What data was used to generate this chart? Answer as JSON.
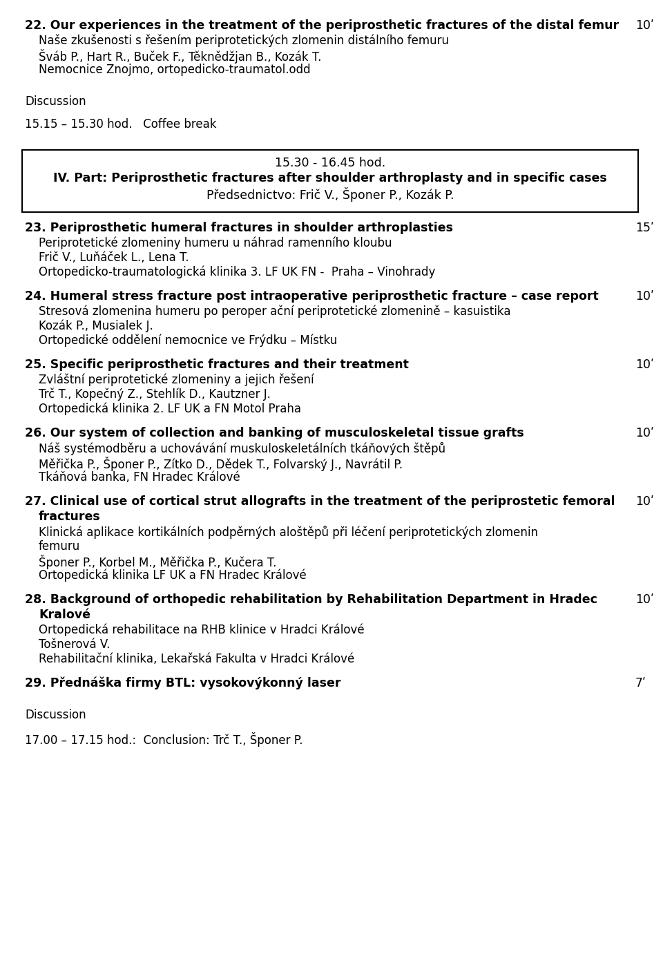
{
  "bg_color": "#ffffff",
  "text_color": "#000000",
  "sections": [
    {
      "type": "entry",
      "number": "22.",
      "title_bold": "Our experiences in the treatment of the periprosthetic fractures of the distal femur",
      "duration": "10ʹ",
      "title_lines": 1,
      "lines": [
        "Naše zkušenosti s řešením periprotetických zlomenin distálního femuru",
        "Šváb P., Hart R., Buček F., Těknědžjan B., Kozák T.",
        "Nemocnice Znojmo, ortopedicko-traumatol.odd"
      ]
    },
    {
      "type": "gap",
      "size": 0.5
    },
    {
      "type": "standalone",
      "text": "Discussion",
      "bold": false
    },
    {
      "type": "gap",
      "size": 0.6
    },
    {
      "type": "standalone",
      "text": "15.15 – 15.30 hod.   Coffee break",
      "bold": false
    },
    {
      "type": "gap",
      "size": 1.2
    },
    {
      "type": "box",
      "lines": [
        {
          "text": "15.30 - 16.45 hod.",
          "bold": false
        },
        {
          "text": "IV. Part: Periprosthetic fractures after shoulder arthroplasty and in specific cases",
          "bold": true
        },
        {
          "text": "Předsednictvo: Frič V., Šponer P., Kozák P.",
          "bold": false
        }
      ]
    },
    {
      "type": "gap",
      "size": 0.3
    },
    {
      "type": "entry",
      "number": "23.",
      "title_bold": "Periprosthetic humeral fractures in shoulder arthroplasties",
      "duration": "15ʹ",
      "title_lines": 1,
      "lines": [
        "Periprotetické zlomeniny humeru u náhrad ramenního kloubu",
        "Frič V., Luňáček L., Lena T.",
        "Ortopedicko-traumatologická klinika 3. LF UK FN -  Praha – Vinohrady"
      ]
    },
    {
      "type": "entry",
      "number": "24.",
      "title_bold": "Humeral stress fracture post intraoperative periprosthetic fracture – case report",
      "duration": "10ʹ",
      "title_lines": 1,
      "lines": [
        "Stresová zlomenina humeru po peroper ační periprotetické zlomenině – kasuistika",
        "Kozák P., Musialek J.",
        "Ortopedické oddělení nemocnice ve Frýdku – Místku"
      ]
    },
    {
      "type": "entry",
      "number": "25.",
      "title_bold": "Specific periprosthetic fractures and their treatment",
      "duration": "10ʹ",
      "title_lines": 1,
      "lines": [
        "Zvláštní periprotetické zlomeniny a jejich řešení",
        "Trč T., Kopečný Z., Stehlík D., Kautzner J.",
        "Ortopedická klinika 2. LF UK a FN Motol Praha"
      ]
    },
    {
      "type": "entry",
      "number": "26.",
      "title_bold": "Our system of collection and banking of musculoskeletal tissue grafts",
      "duration": "10ʹ",
      "title_lines": 1,
      "lines": [
        "Náš systémodběru a uchovávání muskuloskeletálních tkáňových štěpů",
        "Měřička P., Šponer P., Zítko D., Dědek T., Folvarský J., Navrátil P.",
        "Tkáňová banka, FN Hradec Králové"
      ]
    },
    {
      "type": "entry",
      "number": "27.",
      "title_bold": "Clinical use of cortical strut allografts in the treatment of the periprostetic femoral",
      "title_line2": "fractures",
      "duration": "10ʹ",
      "title_lines": 2,
      "lines": [
        "Klinická aplikace kortikálních podpěrných aloštěpů při léčení periprotetických zlomenin",
        "femuru",
        "Šponer P., Korbel M., Měřička P., Kučera T.",
        "Ortopedická klinika LF UK a FN Hradec Králové"
      ]
    },
    {
      "type": "entry",
      "number": "28.",
      "title_bold": "Background of orthopedic rehabilitation by Rehabilitation Department in Hradec",
      "title_line2": "Kralové",
      "duration": "10ʹ",
      "title_lines": 2,
      "lines": [
        "Ortopedická rehabilitace na RHB klinice v Hradci Králové",
        "Tošnerová V.",
        "Rehabilitační klinika, Lekařská Fakulta v Hradci Králové"
      ]
    },
    {
      "type": "entry",
      "number": "29.",
      "title_bold": "Přednáška firmy BTL: vysokovýkonný laser",
      "duration": "7ʹ",
      "title_lines": 1,
      "lines": []
    },
    {
      "type": "gap",
      "size": 0.5
    },
    {
      "type": "standalone",
      "text": "Discussion",
      "bold": false
    },
    {
      "type": "gap",
      "size": 0.6
    },
    {
      "type": "standalone",
      "text": "17.00 – 17.15 hod.:  Conclusion: Trč T., Šponer P.",
      "bold": false
    }
  ]
}
